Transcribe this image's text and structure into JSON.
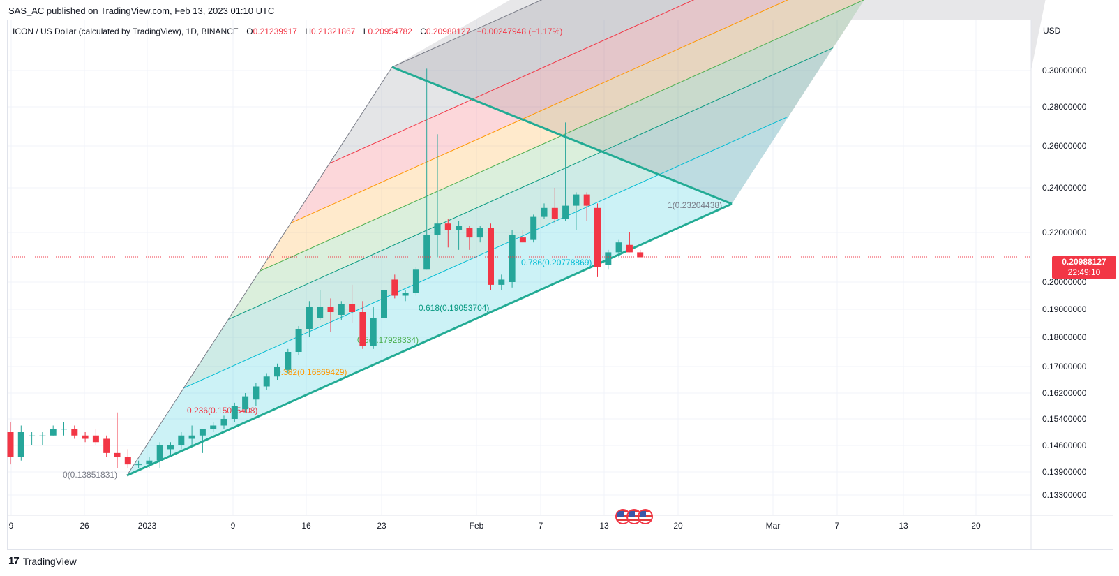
{
  "header": {
    "publish_line": "SAS_AC published on TradingView.com, Feb 13, 2023 01:10 UTC"
  },
  "legend": {
    "symbol": "ICON / US Dollar (calculated by TradingView), 1D, BINANCE",
    "open_label": "O",
    "open": "0.21239917",
    "high_label": "H",
    "high": "0.21321867",
    "low_label": "L",
    "low": "0.20954782",
    "close_label": "C",
    "close": "0.20988127",
    "change": "−0.00247948 (−1.17%)"
  },
  "axis": {
    "currency": "USD",
    "last_price": "0.20988127",
    "countdown": "22:49:10"
  },
  "branding": {
    "logo_text": "TradingView"
  },
  "colors": {
    "up": "#26a69a",
    "down": "#f23645",
    "fib_line": "#22ab94",
    "grid": "#f0f3fa"
  },
  "chart_data": {
    "type": "candlestick",
    "y_ticks": [
      "0.30000000",
      "0.28000000",
      "0.26000000",
      "0.24000000",
      "0.22000000",
      "0.20000000",
      "0.19000000",
      "0.18000000",
      "0.17000000",
      "0.16200000",
      "0.15400000",
      "0.14600000",
      "0.13900000",
      "0.13300000"
    ],
    "x_ticks": [
      "9",
      "26",
      "2023",
      "9",
      "16",
      "23",
      "Feb",
      "7",
      "13",
      "20",
      "Mar",
      "7",
      "13",
      "20"
    ],
    "fib_levels": [
      {
        "label": "0(0.13851831)",
        "color": "#787b86"
      },
      {
        "label": "0.236(0.15045408)",
        "color": "#f23645"
      },
      {
        "label": "0.382(0.16869429)",
        "color": "#ff9800"
      },
      {
        "label": "0.5(0.17928334)",
        "color": "#4caf50"
      },
      {
        "label": "0.618(0.19053704)",
        "color": "#089981"
      },
      {
        "label": "0.786(0.20778869)",
        "color": "#00bcd4"
      },
      {
        "label": "1(0.23204438)",
        "color": "#787b86"
      }
    ],
    "candles": [
      {
        "o": 0.15,
        "h": 0.153,
        "l": 0.141,
        "c": 0.143
      },
      {
        "o": 0.143,
        "h": 0.152,
        "l": 0.142,
        "c": 0.15
      },
      {
        "o": 0.149,
        "h": 0.15,
        "l": 0.146,
        "c": 0.149
      },
      {
        "o": 0.149,
        "h": 0.15,
        "l": 0.146,
        "c": 0.149
      },
      {
        "o": 0.149,
        "h": 0.152,
        "l": 0.149,
        "c": 0.151
      },
      {
        "o": 0.151,
        "h": 0.153,
        "l": 0.149,
        "c": 0.151
      },
      {
        "o": 0.151,
        "h": 0.152,
        "l": 0.148,
        "c": 0.149
      },
      {
        "o": 0.149,
        "h": 0.15,
        "l": 0.147,
        "c": 0.148
      },
      {
        "o": 0.149,
        "h": 0.151,
        "l": 0.146,
        "c": 0.147
      },
      {
        "o": 0.148,
        "h": 0.149,
        "l": 0.143,
        "c": 0.144
      },
      {
        "o": 0.144,
        "h": 0.156,
        "l": 0.14,
        "c": 0.143
      },
      {
        "o": 0.143,
        "h": 0.145,
        "l": 0.14,
        "c": 0.141
      },
      {
        "o": 0.141,
        "h": 0.142,
        "l": 0.14,
        "c": 0.141
      },
      {
        "o": 0.141,
        "h": 0.143,
        "l": 0.14,
        "c": 0.142
      },
      {
        "o": 0.142,
        "h": 0.147,
        "l": 0.14,
        "c": 0.146
      },
      {
        "o": 0.145,
        "h": 0.147,
        "l": 0.143,
        "c": 0.146
      },
      {
        "o": 0.146,
        "h": 0.15,
        "l": 0.145,
        "c": 0.149
      },
      {
        "o": 0.148,
        "h": 0.152,
        "l": 0.146,
        "c": 0.149
      },
      {
        "o": 0.149,
        "h": 0.151,
        "l": 0.144,
        "c": 0.151
      },
      {
        "o": 0.151,
        "h": 0.153,
        "l": 0.15,
        "c": 0.152
      },
      {
        "o": 0.152,
        "h": 0.155,
        "l": 0.151,
        "c": 0.154
      },
      {
        "o": 0.154,
        "h": 0.159,
        "l": 0.153,
        "c": 0.158
      },
      {
        "o": 0.157,
        "h": 0.162,
        "l": 0.156,
        "c": 0.161
      },
      {
        "o": 0.16,
        "h": 0.165,
        "l": 0.158,
        "c": 0.164
      },
      {
        "o": 0.164,
        "h": 0.168,
        "l": 0.163,
        "c": 0.167
      },
      {
        "o": 0.167,
        "h": 0.171,
        "l": 0.166,
        "c": 0.17
      },
      {
        "o": 0.169,
        "h": 0.176,
        "l": 0.168,
        "c": 0.175
      },
      {
        "o": 0.175,
        "h": 0.184,
        "l": 0.174,
        "c": 0.183
      },
      {
        "o": 0.183,
        "h": 0.193,
        "l": 0.18,
        "c": 0.191
      },
      {
        "o": 0.187,
        "h": 0.197,
        "l": 0.186,
        "c": 0.191
      },
      {
        "o": 0.191,
        "h": 0.194,
        "l": 0.182,
        "c": 0.189
      },
      {
        "o": 0.188,
        "h": 0.193,
        "l": 0.186,
        "c": 0.192
      },
      {
        "o": 0.192,
        "h": 0.199,
        "l": 0.185,
        "c": 0.189
      },
      {
        "o": 0.189,
        "h": 0.193,
        "l": 0.176,
        "c": 0.177
      },
      {
        "o": 0.177,
        "h": 0.191,
        "l": 0.176,
        "c": 0.187
      },
      {
        "o": 0.187,
        "h": 0.199,
        "l": 0.186,
        "c": 0.197
      },
      {
        "o": 0.201,
        "h": 0.203,
        "l": 0.194,
        "c": 0.195
      },
      {
        "o": 0.195,
        "h": 0.197,
        "l": 0.193,
        "c": 0.196
      },
      {
        "o": 0.196,
        "h": 0.206,
        "l": 0.195,
        "c": 0.205
      },
      {
        "o": 0.205,
        "h": 0.301,
        "l": 0.205,
        "c": 0.219
      },
      {
        "o": 0.219,
        "h": 0.266,
        "l": 0.21,
        "c": 0.224
      },
      {
        "o": 0.224,
        "h": 0.226,
        "l": 0.214,
        "c": 0.221
      },
      {
        "o": 0.221,
        "h": 0.225,
        "l": 0.213,
        "c": 0.223
      },
      {
        "o": 0.222,
        "h": 0.223,
        "l": 0.213,
        "c": 0.218
      },
      {
        "o": 0.218,
        "h": 0.223,
        "l": 0.216,
        "c": 0.222
      },
      {
        "o": 0.222,
        "h": 0.224,
        "l": 0.197,
        "c": 0.199
      },
      {
        "o": 0.199,
        "h": 0.203,
        "l": 0.197,
        "c": 0.201
      },
      {
        "o": 0.2,
        "h": 0.221,
        "l": 0.198,
        "c": 0.219
      },
      {
        "o": 0.218,
        "h": 0.221,
        "l": 0.216,
        "c": 0.216
      },
      {
        "o": 0.217,
        "h": 0.228,
        "l": 0.216,
        "c": 0.227
      },
      {
        "o": 0.227,
        "h": 0.233,
        "l": 0.226,
        "c": 0.231
      },
      {
        "o": 0.231,
        "h": 0.24,
        "l": 0.224,
        "c": 0.226
      },
      {
        "o": 0.226,
        "h": 0.272,
        "l": 0.225,
        "c": 0.232
      },
      {
        "o": 0.232,
        "h": 0.238,
        "l": 0.221,
        "c": 0.237
      },
      {
        "o": 0.237,
        "h": 0.238,
        "l": 0.225,
        "c": 0.232
      },
      {
        "o": 0.231,
        "h": 0.233,
        "l": 0.202,
        "c": 0.206
      },
      {
        "o": 0.207,
        "h": 0.213,
        "l": 0.205,
        "c": 0.212
      },
      {
        "o": 0.212,
        "h": 0.217,
        "l": 0.21,
        "c": 0.216
      },
      {
        "o": 0.215,
        "h": 0.22,
        "l": 0.212,
        "c": 0.212
      },
      {
        "o": 0.212,
        "h": 0.213,
        "l": 0.21,
        "c": 0.21
      }
    ]
  }
}
